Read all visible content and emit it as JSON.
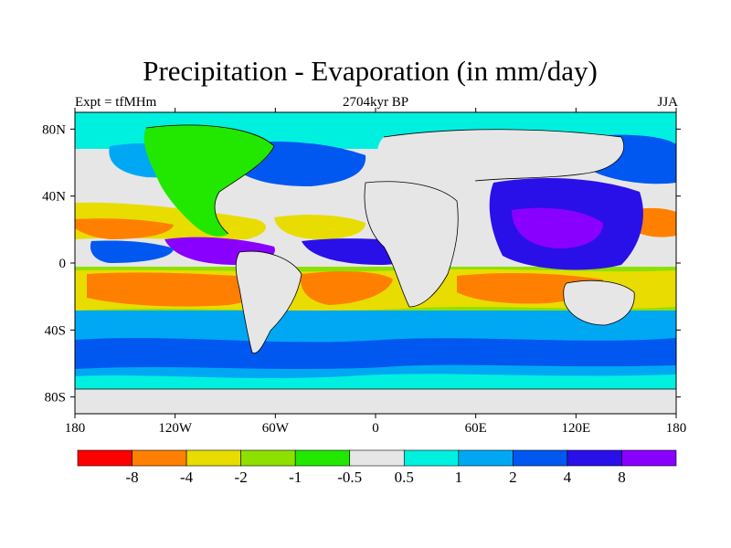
{
  "title": "Precipitation - Evaporation (in mm/day)",
  "subtitle_left": "Expt = tfMHm",
  "subtitle_center": "2704kyr BP",
  "subtitle_right": "JJA",
  "map": {
    "type": "filled-contour-map",
    "lat_ticks": [
      "80N",
      "40N",
      "0",
      "40S",
      "80S"
    ],
    "lon_ticks": [
      "180",
      "120W",
      "60W",
      "0",
      "60E",
      "120E",
      "180"
    ],
    "legend": {
      "labels": [
        "-8",
        "-4",
        "-2",
        "-1",
        "-0.5",
        "0.5",
        "1",
        "2",
        "4",
        "8"
      ],
      "colors": [
        "#ff0000",
        "#ff8000",
        "#e8dc00",
        "#8ee000",
        "#22e800",
        "#e6e6e6",
        "#00f0e0",
        "#00a8f4",
        "#0058f0",
        "#2a10e8",
        "#8a00ff"
      ]
    }
  }
}
